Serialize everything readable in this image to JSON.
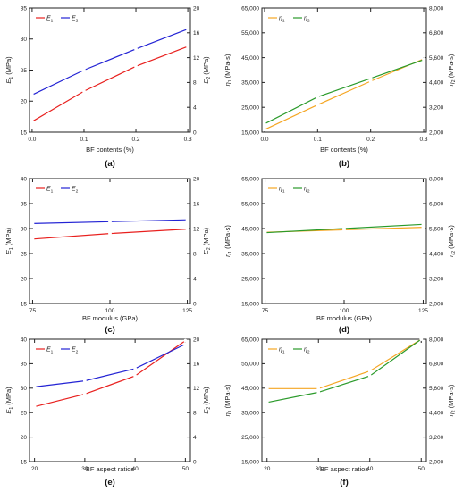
{
  "chart_data": [
    {
      "type": "line",
      "panel_label": "(a)",
      "xlabel": "BF contents (%)",
      "x": [
        0.0,
        0.1,
        0.2,
        0.3
      ],
      "xticks": [
        "0.0",
        "0.1",
        "0.2",
        "0.3"
      ],
      "xlim": [
        -0.005,
        0.305
      ],
      "left_axis": {
        "label_main": "E",
        "label_sub": "1",
        "label_unit": " (MPa)",
        "ylim": [
          15,
          35
        ],
        "ticks": [
          "15",
          "20",
          "25",
          "30",
          "35"
        ]
      },
      "right_axis": {
        "label_main": "E",
        "label_sub": "2",
        "label_unit": " (MPa)",
        "ylim": [
          0,
          20
        ],
        "ticks": [
          "0",
          "4",
          "8",
          "12",
          "16",
          "20"
        ]
      },
      "legend_position": "top-left",
      "series": [
        {
          "name_main": "E",
          "name_sub": "1",
          "axis": "left",
          "color": "#e8201e",
          "values": [
            16.7,
            21.6,
            25.6,
            28.8
          ]
        },
        {
          "name_main": "E",
          "name_sub": "2",
          "axis": "right",
          "color": "#2323d4",
          "values": [
            6.0,
            10.0,
            13.4,
            16.6
          ]
        }
      ]
    },
    {
      "type": "line",
      "panel_label": "(b)",
      "xlabel": "BF contents (%)",
      "x": [
        0.0,
        0.1,
        0.2,
        0.3
      ],
      "xticks": [
        "0.0",
        "0.1",
        "0.2",
        "0.3"
      ],
      "xlim": [
        -0.005,
        0.305
      ],
      "left_axis": {
        "label_main": "η",
        "label_sub": "1",
        "label_unit": " (MPa·s)",
        "ylim": [
          15000,
          65000
        ],
        "ticks": [
          "15,000",
          "25,000",
          "35,000",
          "45,000",
          "55,000",
          "65,000"
        ]
      },
      "right_axis": {
        "label_main": "η",
        "label_sub": "2",
        "label_unit": " (MPa·s)",
        "ylim": [
          2000,
          8000
        ],
        "ticks": [
          "2,000",
          "3,200",
          "4,400",
          "5,600",
          "6,800",
          "8,000"
        ]
      },
      "legend_position": "top-left",
      "series": [
        {
          "name_main": "η",
          "name_sub": "1",
          "axis": "left",
          "color": "#f5a623",
          "values": [
            16000,
            26000,
            35500,
            44500
          ]
        },
        {
          "name_main": "η",
          "name_sub": "2",
          "axis": "right",
          "color": "#2a9a2a",
          "values": [
            2400,
            3700,
            4600,
            5500
          ]
        }
      ]
    },
    {
      "type": "line",
      "panel_label": "(c)",
      "xlabel": "BF modulus (GPa)",
      "x": [
        75,
        100,
        125
      ],
      "xticks": [
        "75",
        "100",
        "125"
      ],
      "xlim": [
        74,
        126
      ],
      "left_axis": {
        "label_main": "E",
        "label_sub": "1",
        "label_unit": " (MPa)",
        "ylim": [
          15,
          40
        ],
        "ticks": [
          "15",
          "20",
          "25",
          "30",
          "35",
          "40"
        ]
      },
      "right_axis": {
        "label_main": "E",
        "label_sub": "2",
        "label_unit": " (MPa)",
        "ylim": [
          0,
          20
        ],
        "ticks": [
          "0",
          "4",
          "8",
          "12",
          "16",
          "20"
        ]
      },
      "legend_position": "top-left",
      "series": [
        {
          "name_main": "E",
          "name_sub": "1",
          "axis": "left",
          "color": "#e8201e",
          "values": [
            27.9,
            29.0,
            29.9
          ]
        },
        {
          "name_main": "E",
          "name_sub": "2",
          "axis": "right",
          "color": "#2323d4",
          "values": [
            12.8,
            13.1,
            13.4
          ]
        }
      ]
    },
    {
      "type": "line",
      "panel_label": "(d)",
      "xlabel": "BF modulus (GPa)",
      "x": [
        75,
        100,
        125
      ],
      "xticks": [
        "75",
        "100",
        "125"
      ],
      "xlim": [
        74,
        126
      ],
      "left_axis": {
        "label_main": "η",
        "label_sub": "1",
        "label_unit": " (MPa·s)",
        "ylim": [
          15000,
          65000
        ],
        "ticks": [
          "15,000",
          "25,000",
          "35,000",
          "45,000",
          "55,000",
          "65,000"
        ]
      },
      "right_axis": {
        "label_main": "η",
        "label_sub": "2",
        "label_unit": " (MPa·s)",
        "ylim": [
          2000,
          8000
        ],
        "ticks": [
          "2,000",
          "3,200",
          "4,400",
          "5,600",
          "6,800",
          "8,000"
        ]
      },
      "legend_position": "top-left",
      "series": [
        {
          "name_main": "η",
          "name_sub": "1",
          "axis": "left",
          "color": "#f5a623",
          "values": [
            43500,
            44500,
            45500
          ]
        },
        {
          "name_main": "η",
          "name_sub": "2",
          "axis": "right",
          "color": "#2a9a2a",
          "values": [
            5400,
            5600,
            5800
          ]
        }
      ]
    },
    {
      "type": "line",
      "panel_label": "(e)",
      "xlabel": "BF aspect ratios",
      "x": [
        20,
        30,
        40,
        50
      ],
      "xticks": [
        "20",
        "30",
        "40",
        "50"
      ],
      "xlim": [
        19,
        51
      ],
      "left_axis": {
        "label_main": "E",
        "label_sub": "1",
        "label_unit": " (MPa)",
        "ylim": [
          15,
          40
        ],
        "ticks": [
          "15",
          "20",
          "25",
          "30",
          "35",
          "40"
        ]
      },
      "right_axis": {
        "label_main": "E",
        "label_sub": "2",
        "label_unit": " (MPa)",
        "ylim": [
          0,
          20
        ],
        "ticks": [
          "0",
          "4",
          "8",
          "12",
          "16",
          "20"
        ]
      },
      "legend_position": "top-left",
      "series": [
        {
          "name_main": "E",
          "name_sub": "1",
          "axis": "left",
          "color": "#e8201e",
          "values": [
            26.2,
            28.8,
            32.5,
            39.7
          ]
        },
        {
          "name_main": "E",
          "name_sub": "2",
          "axis": "right",
          "color": "#2323d4",
          "values": [
            12.2,
            13.2,
            15.2,
            19.2
          ]
        }
      ]
    },
    {
      "type": "line",
      "panel_label": "(f)",
      "xlabel": "BF aspect ratios",
      "x": [
        20,
        30,
        40,
        50
      ],
      "xticks": [
        "20",
        "30",
        "40",
        "50"
      ],
      "xlim": [
        19,
        51
      ],
      "left_axis": {
        "label_main": "η",
        "label_sub": "1",
        "label_unit": " (MPa·s)",
        "ylim": [
          15000,
          65000
        ],
        "ticks": [
          "15,000",
          "25,000",
          "35,000",
          "45,000",
          "55,000",
          "65,000"
        ]
      },
      "right_axis": {
        "label_main": "η",
        "label_sub": "2",
        "label_unit": " (MPa·s)",
        "ylim": [
          2000,
          8000
        ],
        "ticks": [
          "2,000",
          "3,200",
          "4,400",
          "5,600",
          "6,800",
          "8,000"
        ]
      },
      "legend_position": "top-left",
      "series": [
        {
          "name_main": "η",
          "name_sub": "1",
          "axis": "left",
          "color": "#f5a623",
          "values": [
            44800,
            44800,
            52000,
            65000
          ]
        },
        {
          "name_main": "η",
          "name_sub": "2",
          "axis": "right",
          "color": "#2a9a2a",
          "values": [
            4900,
            5400,
            6200,
            8000
          ]
        }
      ]
    }
  ]
}
